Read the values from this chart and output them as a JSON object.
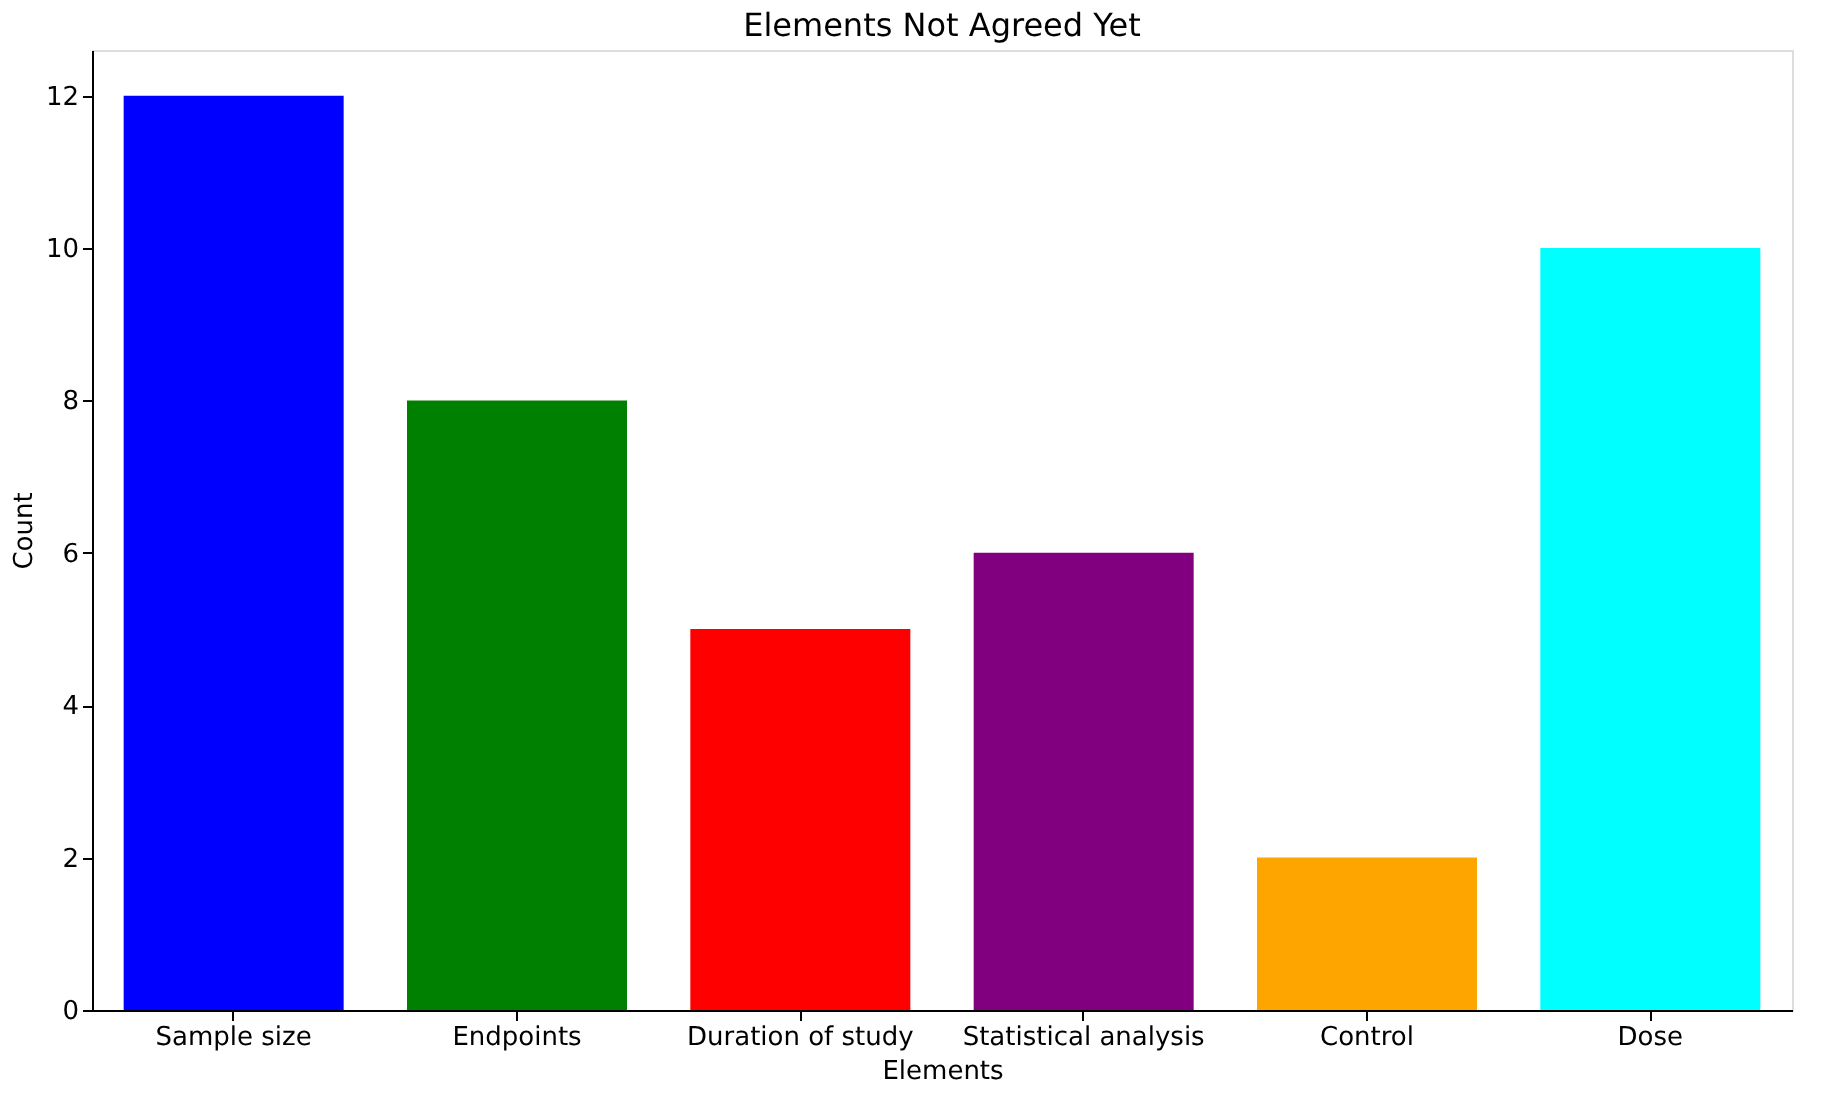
{
  "chart_data": {
    "type": "bar",
    "title": "Elements Not Agreed Yet",
    "xlabel": "Elements",
    "ylabel": "Count",
    "categories": [
      "Sample size",
      "Endpoints",
      "Duration of study",
      "Statistical analysis",
      "Control",
      "Dose"
    ],
    "values": [
      12,
      8,
      5,
      6,
      2,
      10
    ],
    "colors": [
      "#0000ff",
      "#008000",
      "#ff0000",
      "#800080",
      "#ffa500",
      "#00ffff"
    ],
    "ylim": [
      0,
      12.6
    ],
    "yticks": [
      0,
      2,
      4,
      6,
      8,
      10,
      12
    ],
    "grid": false
  }
}
